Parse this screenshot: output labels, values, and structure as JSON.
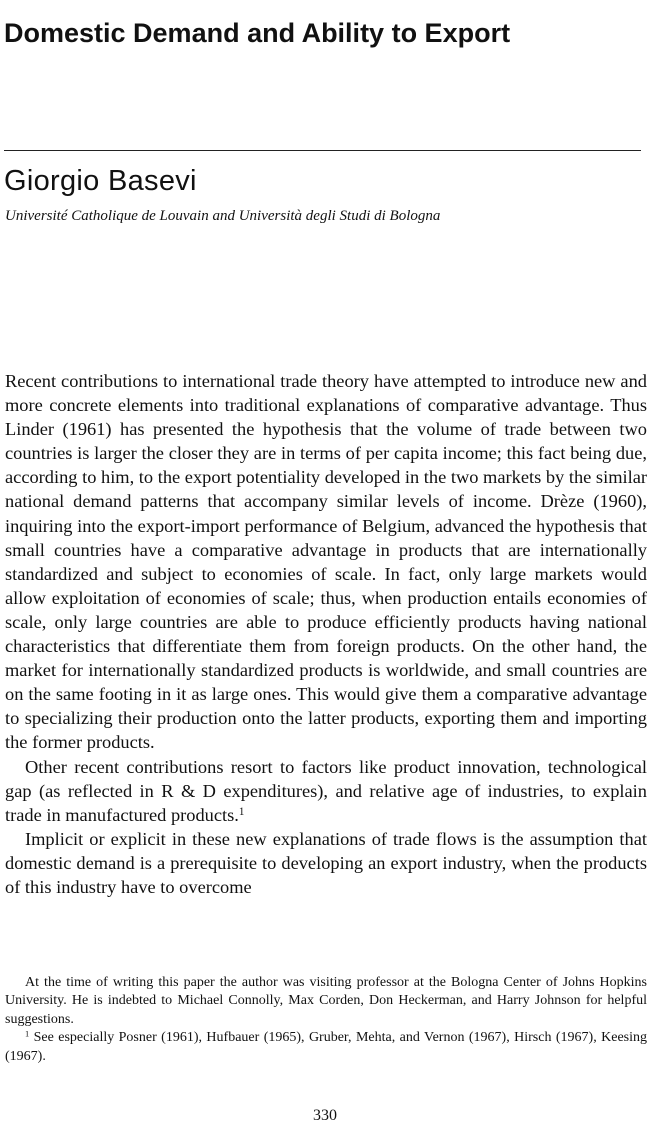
{
  "article": {
    "title": "Domestic Demand and Ability to Export",
    "author": "Giorgio Basevi",
    "affiliation": "Université Catholique de Louvain and Università degli Studi di Bologna"
  },
  "body": {
    "p1": "Recent contributions to international trade theory have attempted to introduce new and more concrete elements into traditional explanations of comparative advantage. Thus Linder (1961) has presented the hypothesis that the volume of trade between two countries is larger the closer they are in terms of per capita income; this fact being due, according to him, to the export potentiality developed in the two markets by the similar national demand patterns that accompany similar levels of income. Drèze (1960), inquiring into the export-import performance of Belgium, advanced the hypothesis that small countries have a comparative advantage in products that are internationally standardized and subject to economies of scale. In fact, only large markets would allow exploitation of economies of scale; thus, when production entails economies of scale, only large coun­tries are able to produce efficiently products having national characteristics that differentiate them from foreign products. On the other hand, the market for internationally standardized products is worldwide, and small countries are on the same footing in it as large ones. This would give them a comparative advantage to specializing their production onto the latter products, exporting them and importing the former products.",
    "p2": "Other recent contributions resort to factors like product innovation, technological gap (as reflected in R & D expenditures), and relative age of industries, to explain trade in manufactured products.",
    "p2_note_ref": "1",
    "p3": "Implicit or explicit in these new explanations of trade flows is the assumption that domestic demand is a prerequisite to developing an export industry, when the products of this industry have to overcome"
  },
  "footnotes": {
    "acknowledgment": "At the time of writing this paper the author was visiting professor at the Bologna Center of Johns Hopkins University. He is indebted to Michael Connolly, Max Corden, Don Heckerman, and Harry Johnson for helpful suggestions.",
    "note1_marker": "1",
    "note1_text": " See especially Posner (1961), Hufbauer (1965), Gruber, Mehta, and Vernon (1967), Hirsch (1967), Keesing (1967)."
  },
  "page": {
    "number": "330"
  }
}
